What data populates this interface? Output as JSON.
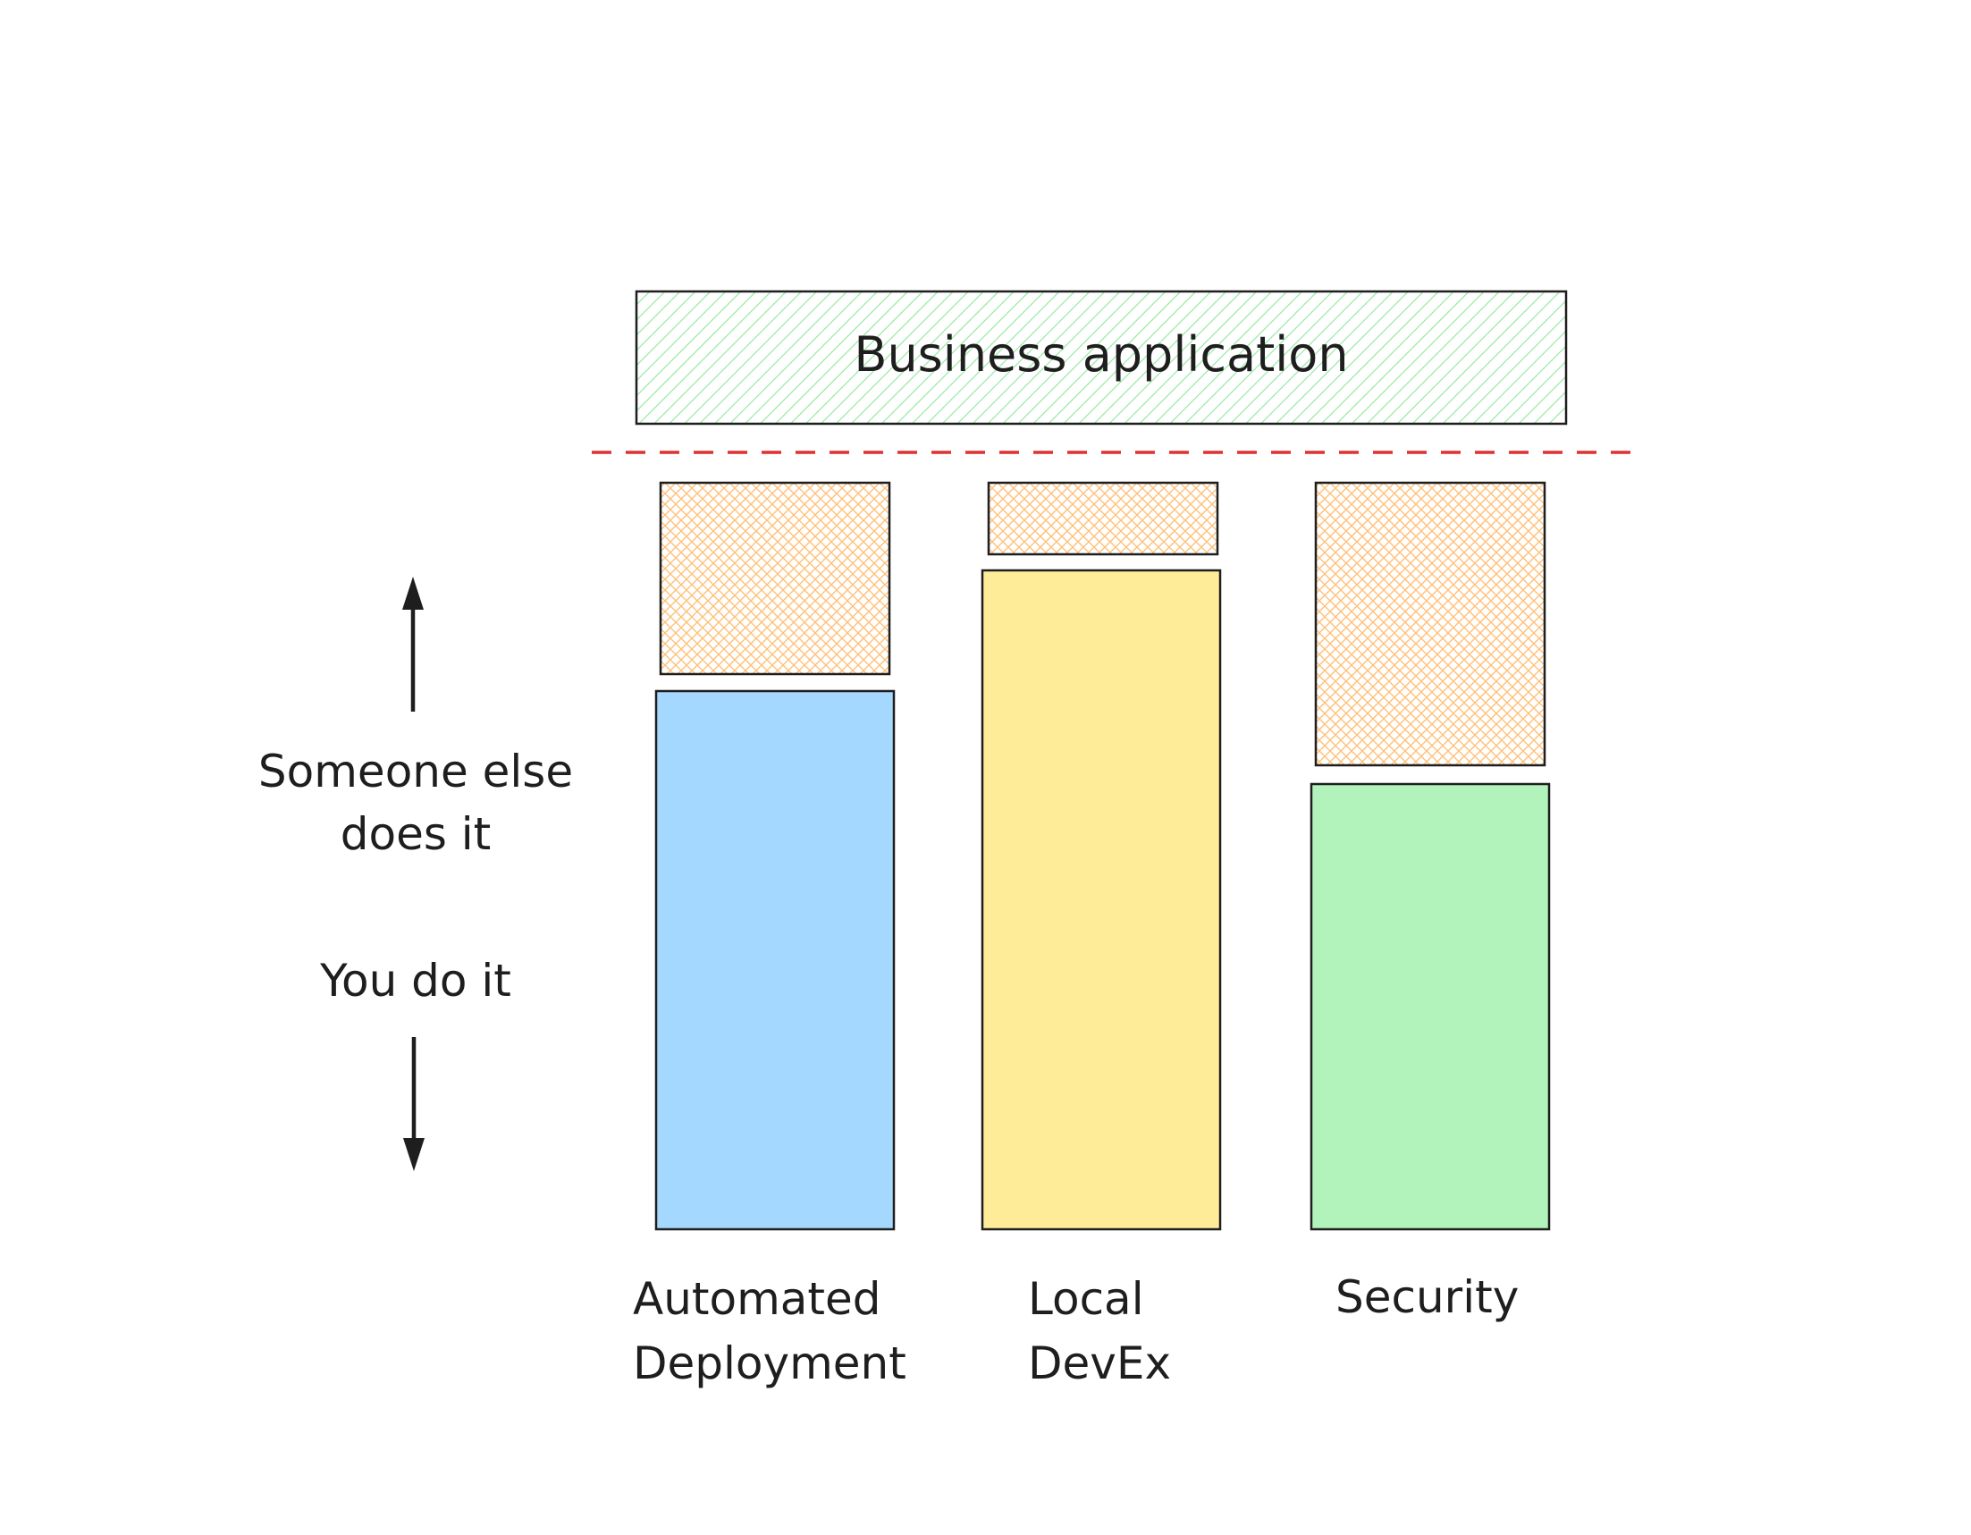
{
  "top_box": {
    "label": "Business application",
    "fill": "#b2f2bb"
  },
  "divider": {
    "color": "#e03131"
  },
  "axis": {
    "upper_label": [
      "Someone else",
      "does it"
    ],
    "lower_label": "You do it",
    "arrow_color": "#1e1e1e"
  },
  "columns": [
    {
      "label": [
        "Automated",
        "Deployment"
      ],
      "you_fill": "#a5d8ff",
      "else_fill": "#ffc078"
    },
    {
      "label": [
        "Local",
        "DevEx"
      ],
      "you_fill": "#ffec99",
      "else_fill": "#ffc078"
    },
    {
      "label": [
        "Security"
      ],
      "you_fill": "#b2f2bb",
      "else_fill": "#ffc078"
    }
  ],
  "stroke": "#1e1e1e"
}
